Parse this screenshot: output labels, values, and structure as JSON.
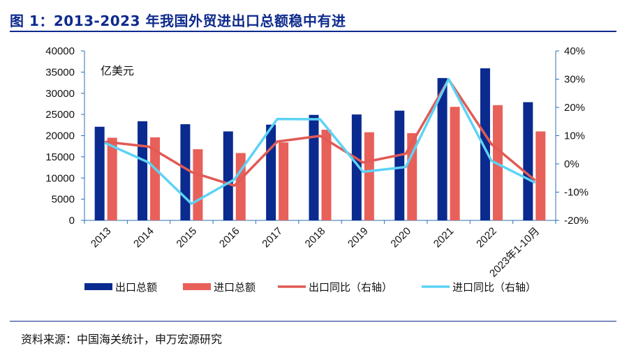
{
  "header": {
    "title": "图 1：2013-2023 年我国外贸进出口总额稳中有进"
  },
  "footer": {
    "source": "资料来源：中国海关统计，申万宏源研究"
  },
  "chart_data": {
    "type": "bar",
    "unit_label": "亿美元",
    "categories": [
      "2013",
      "2014",
      "2015",
      "2016",
      "2017",
      "2018",
      "2019",
      "2020",
      "2021",
      "2022",
      "2023年1-10月"
    ],
    "series": [
      {
        "name": "出口总额",
        "kind": "bar",
        "axis": "left",
        "color": "#0a2a8f",
        "values": [
          22100,
          23400,
          22700,
          21000,
          22600,
          24900,
          25000,
          25900,
          33600,
          35900,
          27900
        ]
      },
      {
        "name": "进口总额",
        "kind": "bar",
        "axis": "left",
        "color": "#e8605a",
        "values": [
          19500,
          19600,
          16800,
          15900,
          18400,
          21400,
          20800,
          20600,
          26800,
          27200,
          21000
        ]
      },
      {
        "name": "出口同比（右轴）",
        "kind": "line",
        "axis": "right",
        "color": "#e15a55",
        "values": [
          7.8,
          6.1,
          -2.9,
          -7.7,
          7.9,
          9.9,
          0.5,
          3.6,
          29.9,
          7.0,
          -5.6
        ]
      },
      {
        "name": "进口同比（右轴）",
        "kind": "line",
        "axis": "right",
        "color": "#5cd3f5",
        "values": [
          7.3,
          0.5,
          -14.1,
          -5.5,
          15.9,
          15.8,
          -2.8,
          -1.1,
          30.0,
          1.1,
          -6.5
        ]
      }
    ],
    "y_left": {
      "min": 0,
      "max": 40000,
      "ticks": [
        0,
        5000,
        10000,
        15000,
        20000,
        25000,
        30000,
        35000,
        40000
      ]
    },
    "y_right": {
      "min": -20,
      "max": 40,
      "ticks": [
        "-20%",
        "-10%",
        "0%",
        "10%",
        "20%",
        "30%",
        "40%"
      ]
    },
    "grid": false,
    "legend_position": "bottom"
  }
}
